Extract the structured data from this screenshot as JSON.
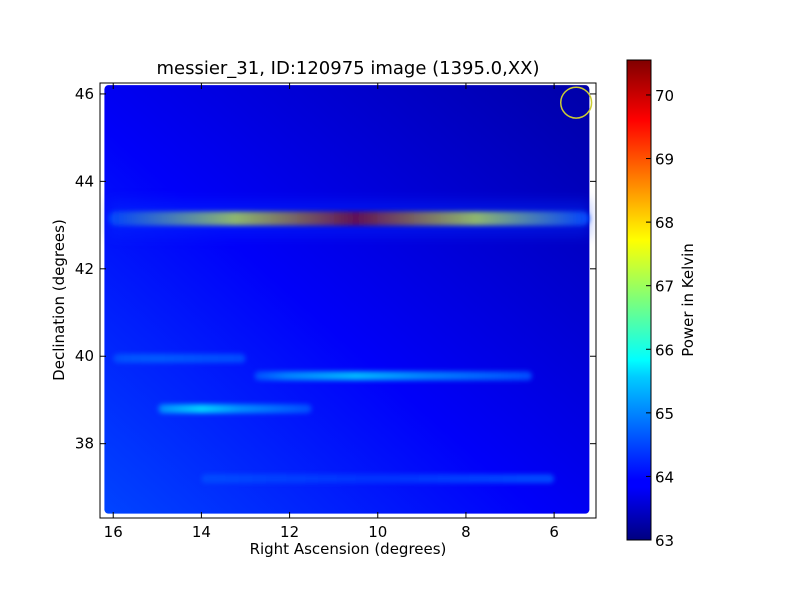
{
  "chart_data": {
    "type": "heatmap",
    "title": "messier_31, ID:120975 image (1395.0,XX)",
    "xlabel": "Right Ascension (degrees)",
    "ylabel": "Declination (degrees)",
    "xlim": [
      16.3,
      5.05
    ],
    "ylim": [
      36.3,
      46.25
    ],
    "x_ticks": [
      16,
      14,
      12,
      10,
      8,
      6
    ],
    "y_ticks": [
      38,
      40,
      42,
      44,
      46
    ],
    "colorbar": {
      "label": "Power in Kelvin",
      "range": [
        63.0,
        70.55
      ],
      "ticks": [
        63,
        64,
        65,
        66,
        67,
        68,
        69,
        70
      ],
      "colormap": "jet"
    },
    "background_level": 63.9,
    "features": [
      {
        "kind": "horizontal-band",
        "dec": 43.15,
        "ra_from": 16.1,
        "ra_to": 5.2,
        "peak_ra": 10.5,
        "peak_value": 70.4
      },
      {
        "kind": "horizontal-band",
        "dec": 39.55,
        "ra_from": 12.8,
        "ra_to": 6.5,
        "peak_ra": 10.5,
        "peak_value": 65.3
      },
      {
        "kind": "horizontal-band",
        "dec": 38.8,
        "ra_from": 15.0,
        "ra_to": 11.5,
        "peak_ra": 14.0,
        "peak_value": 65.5
      },
      {
        "kind": "horizontal-band",
        "dec": 39.95,
        "ra_from": 16.0,
        "ra_to": 13.0,
        "peak_ra": 15.0,
        "peak_value": 64.6
      },
      {
        "kind": "horizontal-band",
        "dec": 37.2,
        "ra_from": 14.0,
        "ra_to": 6.0,
        "peak_ra": 10.0,
        "peak_value": 64.3
      }
    ],
    "beam_marker": {
      "ra": 5.5,
      "dec": 45.8,
      "radius_deg": 0.35,
      "color": "#cccc33"
    },
    "grid": false,
    "legend": "none"
  }
}
